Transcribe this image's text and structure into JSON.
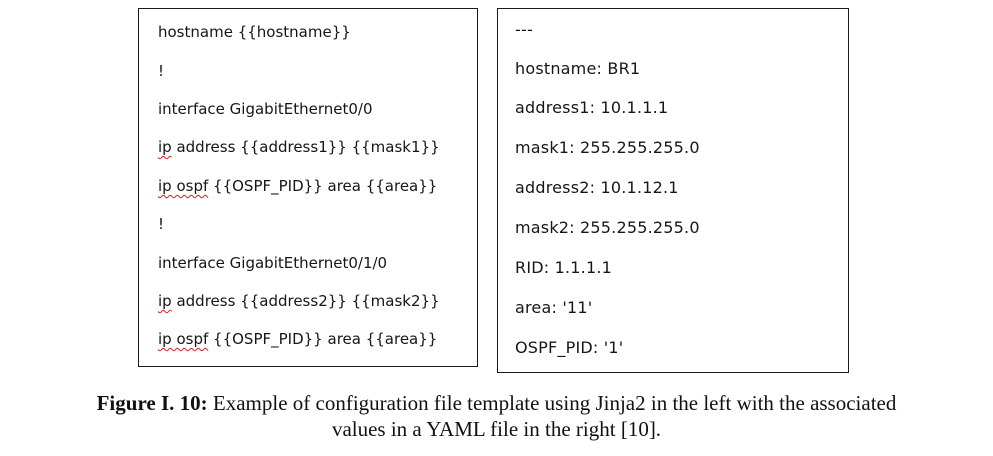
{
  "template_box": {
    "lines": [
      {
        "pre": "",
        "squiggle": "",
        "post": "hostname {{hostname}}"
      },
      {
        "pre": "",
        "squiggle": "",
        "post": "!"
      },
      {
        "pre": "",
        "squiggle": "",
        "post": "interface GigabitEthernet0/0"
      },
      {
        "pre": "",
        "squiggle": "ip",
        "post": " address {{address1}} {{mask1}}"
      },
      {
        "pre": "",
        "squiggle": "ip ospf",
        "post": " {{OSPF_PID}} area {{area}}"
      },
      {
        "pre": "",
        "squiggle": "",
        "post": "!"
      },
      {
        "pre": "",
        "squiggle": "",
        "post": "interface GigabitEthernet0/1/0"
      },
      {
        "pre": "",
        "squiggle": "ip",
        "post": " address {{address2}} {{mask2}}"
      },
      {
        "pre": "",
        "squiggle": "ip ospf",
        "post": " {{OSPF_PID}} area {{area}}"
      }
    ]
  },
  "yaml_box": {
    "lines": [
      "---",
      "hostname: BR1",
      "address1: 10.1.1.1",
      "mask1: 255.255.255.0",
      "address2: 10.1.12.1",
      "mask2: 255.255.255.0",
      "RID: 1.1.1.1",
      "area: '11'",
      "OSPF_PID: '1'"
    ]
  },
  "caption": {
    "label": "Figure I. 10:",
    "text_line1": " Example of configuration file template using Jinja2 in the left with the associated",
    "text_line2": "values in a YAML file in the right [10]."
  },
  "colors": {
    "spellcheck_underline": "#d11f1f",
    "border": "#1a1a1a"
  }
}
